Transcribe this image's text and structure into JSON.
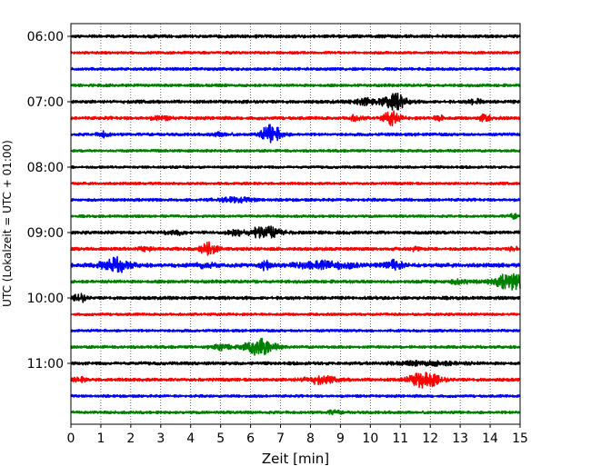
{
  "chart_data": {
    "type": "line",
    "title": "",
    "xlabel": "Zeit  [min]",
    "ylabel": "UTC (Lokalzeit = UTC + 01:00)",
    "xlim": [
      0,
      15
    ],
    "x_ticks": [
      "0",
      "1",
      "2",
      "3",
      "4",
      "5",
      "6",
      "7",
      "8",
      "9",
      "10",
      "11",
      "12",
      "13",
      "14",
      "15"
    ],
    "y_ticks": [
      "06:00",
      "07:00",
      "08:00",
      "09:00",
      "10:00",
      "11:00"
    ],
    "grid": "vertical dotted",
    "trace_interval_minutes": 15,
    "start_time": "06:00",
    "colors": [
      "#000000",
      "#ff0000",
      "#0000ff",
      "#008000"
    ],
    "traces": [
      {
        "time": "06:00",
        "color": "#000000",
        "base_amp": 0.25,
        "events": []
      },
      {
        "time": "06:15",
        "color": "#ff0000",
        "base_amp": 0.2,
        "events": []
      },
      {
        "time": "06:30",
        "color": "#0000ff",
        "base_amp": 0.22,
        "events": []
      },
      {
        "time": "06:45",
        "color": "#008000",
        "base_amp": 0.22,
        "events": []
      },
      {
        "time": "07:00",
        "color": "#000000",
        "base_amp": 0.25,
        "events": [
          {
            "t": 10.8,
            "amp": 1.2,
            "dur": 0.6
          },
          {
            "t": 9.8,
            "amp": 0.5,
            "dur": 0.5
          },
          {
            "t": 13.5,
            "amp": 0.4,
            "dur": 0.3
          }
        ]
      },
      {
        "time": "07:15",
        "color": "#ff0000",
        "base_amp": 0.25,
        "events": [
          {
            "t": 10.7,
            "amp": 1.0,
            "dur": 0.4
          },
          {
            "t": 9.5,
            "amp": 0.4,
            "dur": 0.3
          },
          {
            "t": 12.3,
            "amp": 0.5,
            "dur": 0.2
          },
          {
            "t": 13.8,
            "amp": 0.5,
            "dur": 0.3
          },
          {
            "t": 3.0,
            "amp": 0.3,
            "dur": 0.4
          }
        ]
      },
      {
        "time": "07:30",
        "color": "#0000ff",
        "base_amp": 0.22,
        "events": [
          {
            "t": 6.7,
            "amp": 1.5,
            "dur": 0.5
          },
          {
            "t": 1.1,
            "amp": 0.4,
            "dur": 0.3
          },
          {
            "t": 5.0,
            "amp": 0.3,
            "dur": 0.4
          }
        ]
      },
      {
        "time": "07:45",
        "color": "#008000",
        "base_amp": 0.2,
        "events": []
      },
      {
        "time": "08:00",
        "color": "#000000",
        "base_amp": 0.2,
        "events": []
      },
      {
        "time": "08:15",
        "color": "#ff0000",
        "base_amp": 0.2,
        "events": []
      },
      {
        "time": "08:30",
        "color": "#0000ff",
        "base_amp": 0.22,
        "events": [
          {
            "t": 5.5,
            "amp": 0.3,
            "dur": 1.0
          }
        ]
      },
      {
        "time": "08:45",
        "color": "#008000",
        "base_amp": 0.2,
        "events": [
          {
            "t": 14.8,
            "amp": 0.3,
            "dur": 0.3
          }
        ]
      },
      {
        "time": "09:00",
        "color": "#000000",
        "base_amp": 0.25,
        "events": [
          {
            "t": 6.5,
            "amp": 0.9,
            "dur": 0.8
          },
          {
            "t": 5.5,
            "amp": 0.6,
            "dur": 0.3
          },
          {
            "t": 3.5,
            "amp": 0.3,
            "dur": 0.4
          }
        ]
      },
      {
        "time": "09:15",
        "color": "#ff0000",
        "base_amp": 0.25,
        "events": [
          {
            "t": 4.6,
            "amp": 1.0,
            "dur": 0.4
          },
          {
            "t": 2.5,
            "amp": 0.3,
            "dur": 0.3
          },
          {
            "t": 11.5,
            "amp": 0.3,
            "dur": 0.2
          },
          {
            "t": 14.8,
            "amp": 0.3,
            "dur": 0.2
          }
        ]
      },
      {
        "time": "09:30",
        "color": "#0000ff",
        "base_amp": 0.3,
        "events": [
          {
            "t": 1.5,
            "amp": 1.1,
            "dur": 0.7
          },
          {
            "t": 6.5,
            "amp": 0.8,
            "dur": 0.2
          },
          {
            "t": 10.8,
            "amp": 0.7,
            "dur": 0.4
          },
          {
            "t": 8.5,
            "amp": 0.5,
            "dur": 1.5
          },
          {
            "t": 4.5,
            "amp": 0.3,
            "dur": 0.5
          }
        ]
      },
      {
        "time": "09:45",
        "color": "#008000",
        "base_amp": 0.25,
        "events": [
          {
            "t": 14.7,
            "amp": 1.2,
            "dur": 0.8
          },
          {
            "t": 13.0,
            "amp": 0.3,
            "dur": 0.6
          }
        ]
      },
      {
        "time": "10:00",
        "color": "#000000",
        "base_amp": 0.25,
        "events": [
          {
            "t": 0.3,
            "amp": 0.6,
            "dur": 0.3
          }
        ]
      },
      {
        "time": "10:15",
        "color": "#ff0000",
        "base_amp": 0.2,
        "events": []
      },
      {
        "time": "10:30",
        "color": "#0000ff",
        "base_amp": 0.2,
        "events": []
      },
      {
        "time": "10:45",
        "color": "#008000",
        "base_amp": 0.22,
        "events": [
          {
            "t": 6.3,
            "amp": 1.3,
            "dur": 0.7
          },
          {
            "t": 5.0,
            "amp": 0.4,
            "dur": 0.5
          }
        ]
      },
      {
        "time": "11:00",
        "color": "#000000",
        "base_amp": 0.25,
        "events": [
          {
            "t": 12.0,
            "amp": 0.3,
            "dur": 1.5
          }
        ]
      },
      {
        "time": "11:15",
        "color": "#ff0000",
        "base_amp": 0.25,
        "events": [
          {
            "t": 11.8,
            "amp": 1.3,
            "dur": 0.7
          },
          {
            "t": 8.3,
            "amp": 0.5,
            "dur": 0.8
          },
          {
            "t": 0.3,
            "amp": 0.3,
            "dur": 0.3
          }
        ]
      },
      {
        "time": "11:30",
        "color": "#0000ff",
        "base_amp": 0.2,
        "events": []
      },
      {
        "time": "11:45",
        "color": "#008000",
        "base_amp": 0.22,
        "events": [
          {
            "t": 8.8,
            "amp": 0.3,
            "dur": 0.3
          }
        ]
      }
    ]
  }
}
